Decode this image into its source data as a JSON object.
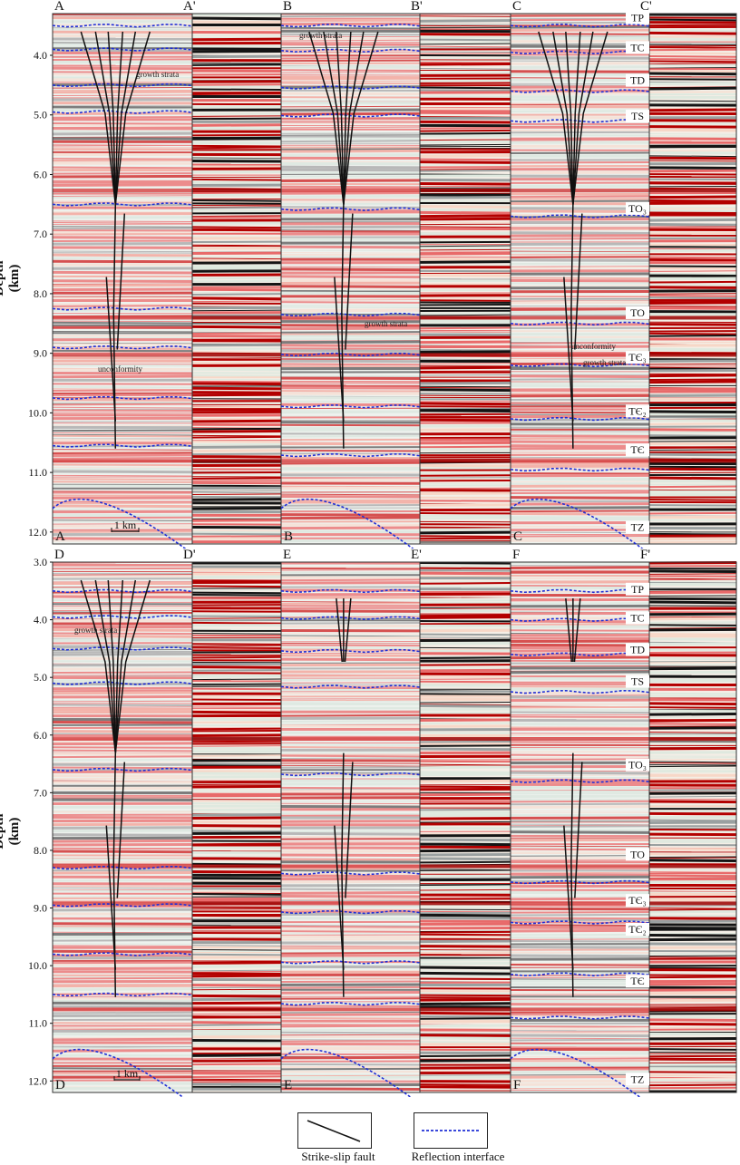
{
  "figure": {
    "y_axis": {
      "label": "Depth (km)",
      "top_ticks": [
        "4.0",
        "5.0",
        "6.0",
        "7.0",
        "8.0",
        "9.0",
        "10.0",
        "11.0",
        "12.0"
      ],
      "bottom_ticks": [
        "3.0",
        "4.0",
        "5.0",
        "6.0",
        "7.0",
        "8.0",
        "9.0",
        "10.0",
        "11.0",
        "12.0"
      ]
    },
    "sections": [
      {
        "id": "A",
        "top": "A",
        "prime": "A'",
        "bottom": "A"
      },
      {
        "id": "B",
        "top": "B",
        "prime": "B'",
        "bottom": "B"
      },
      {
        "id": "C",
        "top": "C",
        "prime": "C'",
        "bottom": "C"
      },
      {
        "id": "D",
        "top": "D",
        "prime": "D'",
        "bottom": "D"
      },
      {
        "id": "E",
        "top": "E",
        "prime": "E'",
        "bottom": "E"
      },
      {
        "id": "F",
        "top": "F",
        "prime": "F'",
        "bottom": "F"
      }
    ],
    "horizons": [
      "TP",
      "TC",
      "TD",
      "TS",
      "TO₃",
      "TO",
      "TЄ₃",
      "TЄ₂",
      "TЄ",
      "TZ"
    ],
    "annotations": {
      "growth_strata": "growth strata",
      "unconformity": "unconformity"
    },
    "scale_bar": "1 km",
    "legend": {
      "fault": "Strike-slip fault",
      "reflection": "Reflection interface"
    },
    "colors": {
      "red": "#e05a5a",
      "dark": "#1a1a1a",
      "pale": "#dfe9e2",
      "blue_dash": "#1f2fd6"
    }
  }
}
